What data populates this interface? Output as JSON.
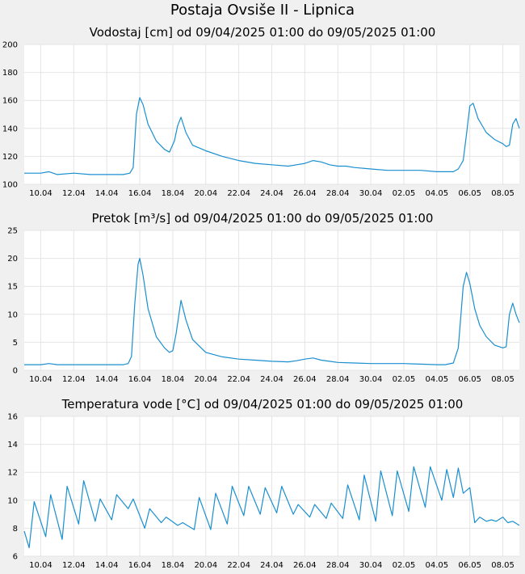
{
  "page": {
    "title": "Postaja Ovsiše II - Lipnica"
  },
  "colors": {
    "line": "#1a8fcf",
    "grid": "#e4e4e4",
    "plot_bg": "#ffffff",
    "page_bg": "#f0f0f0"
  },
  "chart_data": [
    {
      "type": "line",
      "title": "Vodostaj [cm] od 09/04/2025 01:00 do 09/05/2025 01:00",
      "ylim": [
        100,
        200
      ],
      "yticks": [
        100,
        120,
        140,
        160,
        180,
        200
      ],
      "xlim": [
        0,
        30
      ],
      "xticks": [
        {
          "x": 1,
          "label": "10.04"
        },
        {
          "x": 3,
          "label": "12.04"
        },
        {
          "x": 5,
          "label": "14.04"
        },
        {
          "x": 7,
          "label": "16.04"
        },
        {
          "x": 9,
          "label": "18.04"
        },
        {
          "x": 11,
          "label": "20.04"
        },
        {
          "x": 13,
          "label": "22.04"
        },
        {
          "x": 15,
          "label": "24.04"
        },
        {
          "x": 17,
          "label": "26.04"
        },
        {
          "x": 19,
          "label": "28.04"
        },
        {
          "x": 21,
          "label": "30.04"
        },
        {
          "x": 23,
          "label": "02.05"
        },
        {
          "x": 25,
          "label": "04.05"
        },
        {
          "x": 27,
          "label": "06.05"
        },
        {
          "x": 29,
          "label": "08.05"
        }
      ],
      "x": [
        0,
        1,
        1.5,
        2,
        3,
        4,
        5,
        6,
        6.4,
        6.6,
        6.8,
        7.0,
        7.2,
        7.5,
        8.0,
        8.5,
        8.8,
        9.1,
        9.3,
        9.5,
        9.8,
        10.2,
        11,
        12,
        13,
        14,
        15,
        16,
        16.5,
        17,
        17.5,
        18,
        18.5,
        19,
        19.5,
        20,
        21,
        22,
        23,
        24,
        25,
        26,
        26.3,
        26.6,
        26.8,
        27.0,
        27.2,
        27.5,
        28.0,
        28.5,
        29.0,
        29.2,
        29.4,
        29.6,
        29.8,
        30
      ],
      "y": [
        108,
        108,
        109,
        107,
        108,
        107,
        107,
        107,
        108,
        112,
        150,
        162,
        157,
        143,
        131,
        125,
        123,
        131,
        142,
        148,
        137,
        128,
        124,
        120,
        117,
        115,
        114,
        113,
        114,
        115,
        117,
        116,
        114,
        113,
        113,
        112,
        111,
        110,
        110,
        110,
        109,
        109,
        111,
        117,
        136,
        156,
        158,
        147,
        137,
        132,
        129,
        127,
        128,
        143,
        147,
        140
      ]
    },
    {
      "type": "line",
      "title": "Pretok [m³/s] od 09/04/2025 01:00 do 09/05/2025 01:00",
      "ylim": [
        0,
        25
      ],
      "yticks": [
        0,
        5,
        10,
        15,
        20,
        25
      ],
      "xlim": [
        0,
        30
      ],
      "xticks": [
        {
          "x": 1,
          "label": "10.04"
        },
        {
          "x": 3,
          "label": "12.04"
        },
        {
          "x": 5,
          "label": "14.04"
        },
        {
          "x": 7,
          "label": "16.04"
        },
        {
          "x": 9,
          "label": "18.04"
        },
        {
          "x": 11,
          "label": "20.04"
        },
        {
          "x": 13,
          "label": "22.04"
        },
        {
          "x": 15,
          "label": "24.04"
        },
        {
          "x": 17,
          "label": "26.04"
        },
        {
          "x": 19,
          "label": "28.04"
        },
        {
          "x": 21,
          "label": "30.04"
        },
        {
          "x": 23,
          "label": "02.05"
        },
        {
          "x": 25,
          "label": "04.05"
        },
        {
          "x": 27,
          "label": "06.05"
        },
        {
          "x": 29,
          "label": "08.05"
        }
      ],
      "x": [
        0,
        1,
        1.5,
        2,
        3,
        4,
        5,
        6,
        6.3,
        6.5,
        6.7,
        6.9,
        7.0,
        7.2,
        7.5,
        8.0,
        8.5,
        8.8,
        9.0,
        9.2,
        9.5,
        9.8,
        10.2,
        11,
        12,
        13,
        14,
        15,
        16,
        16.5,
        17,
        17.5,
        18,
        18.5,
        19,
        20,
        21,
        22,
        23,
        24,
        25,
        25.5,
        26.0,
        26.3,
        26.6,
        26.8,
        27.0,
        27.3,
        27.6,
        28.0,
        28.5,
        29.0,
        29.2,
        29.4,
        29.6,
        29.8,
        30
      ],
      "y": [
        1,
        1,
        1.2,
        1,
        1,
        1,
        1,
        1,
        1.2,
        2.5,
        12,
        19,
        20,
        17,
        11,
        6,
        4,
        3.2,
        3.5,
        6.5,
        12.5,
        9,
        5.5,
        3.2,
        2.4,
        2.0,
        1.8,
        1.6,
        1.5,
        1.7,
        2.0,
        2.2,
        1.8,
        1.6,
        1.4,
        1.3,
        1.2,
        1.2,
        1.2,
        1.1,
        1.0,
        1.0,
        1.3,
        4,
        15,
        17.5,
        15.5,
        11,
        8,
        6,
        4.5,
        4,
        4.2,
        10,
        12,
        10,
        8.5
      ]
    },
    {
      "type": "line",
      "title": "Temperatura vode [°C] od 09/04/2025 01:00 do 09/05/2025 01:00",
      "ylim": [
        6,
        16
      ],
      "yticks": [
        6,
        8,
        10,
        12,
        14,
        16
      ],
      "xlim": [
        0,
        30
      ],
      "xticks": [
        {
          "x": 1,
          "label": "10.04"
        },
        {
          "x": 3,
          "label": "12.04"
        },
        {
          "x": 5,
          "label": "14.04"
        },
        {
          "x": 7,
          "label": "16.04"
        },
        {
          "x": 9,
          "label": "18.04"
        },
        {
          "x": 11,
          "label": "20.04"
        },
        {
          "x": 13,
          "label": "22.04"
        },
        {
          "x": 15,
          "label": "24.04"
        },
        {
          "x": 17,
          "label": "26.04"
        },
        {
          "x": 19,
          "label": "28.04"
        },
        {
          "x": 21,
          "label": "30.04"
        },
        {
          "x": 23,
          "label": "02.05"
        },
        {
          "x": 25,
          "label": "04.05"
        },
        {
          "x": 27,
          "label": "06.05"
        },
        {
          "x": 29,
          "label": "08.05"
        }
      ],
      "x": [
        0,
        0.3,
        0.6,
        1.3,
        1.6,
        2.3,
        2.6,
        3.3,
        3.6,
        4.3,
        4.6,
        5.3,
        5.6,
        6.3,
        6.6,
        7.3,
        7.6,
        8.3,
        8.6,
        9.3,
        9.6,
        10.3,
        10.6,
        11.3,
        11.6,
        12.3,
        12.6,
        13.3,
        13.6,
        14.3,
        14.6,
        15.3,
        15.6,
        16.3,
        16.6,
        17.3,
        17.6,
        18.3,
        18.6,
        19.3,
        19.6,
        20.3,
        20.6,
        21.3,
        21.6,
        22.3,
        22.6,
        23.3,
        23.6,
        24.3,
        24.6,
        25.3,
        25.6,
        26.0,
        26.3,
        26.6,
        27.0,
        27.3,
        27.6,
        28.0,
        28.3,
        28.6,
        29.0,
        29.3,
        29.6,
        30
      ],
      "y": [
        7.8,
        6.6,
        9.9,
        7.4,
        10.4,
        7.2,
        11.0,
        8.3,
        11.4,
        8.5,
        10.1,
        8.6,
        10.4,
        9.4,
        10.1,
        8.0,
        9.4,
        8.4,
        8.8,
        8.2,
        8.4,
        7.9,
        10.2,
        7.9,
        10.5,
        8.3,
        11.0,
        8.9,
        11.0,
        9.0,
        10.9,
        9.1,
        11.0,
        9.0,
        9.7,
        8.8,
        9.7,
        8.7,
        9.8,
        8.7,
        11.1,
        8.6,
        11.8,
        8.5,
        12.1,
        8.9,
        12.1,
        9.2,
        12.4,
        9.5,
        12.4,
        10.0,
        12.2,
        10.2,
        12.3,
        10.5,
        10.9,
        8.4,
        8.8,
        8.5,
        8.6,
        8.5,
        8.8,
        8.4,
        8.5,
        8.2
      ]
    }
  ]
}
